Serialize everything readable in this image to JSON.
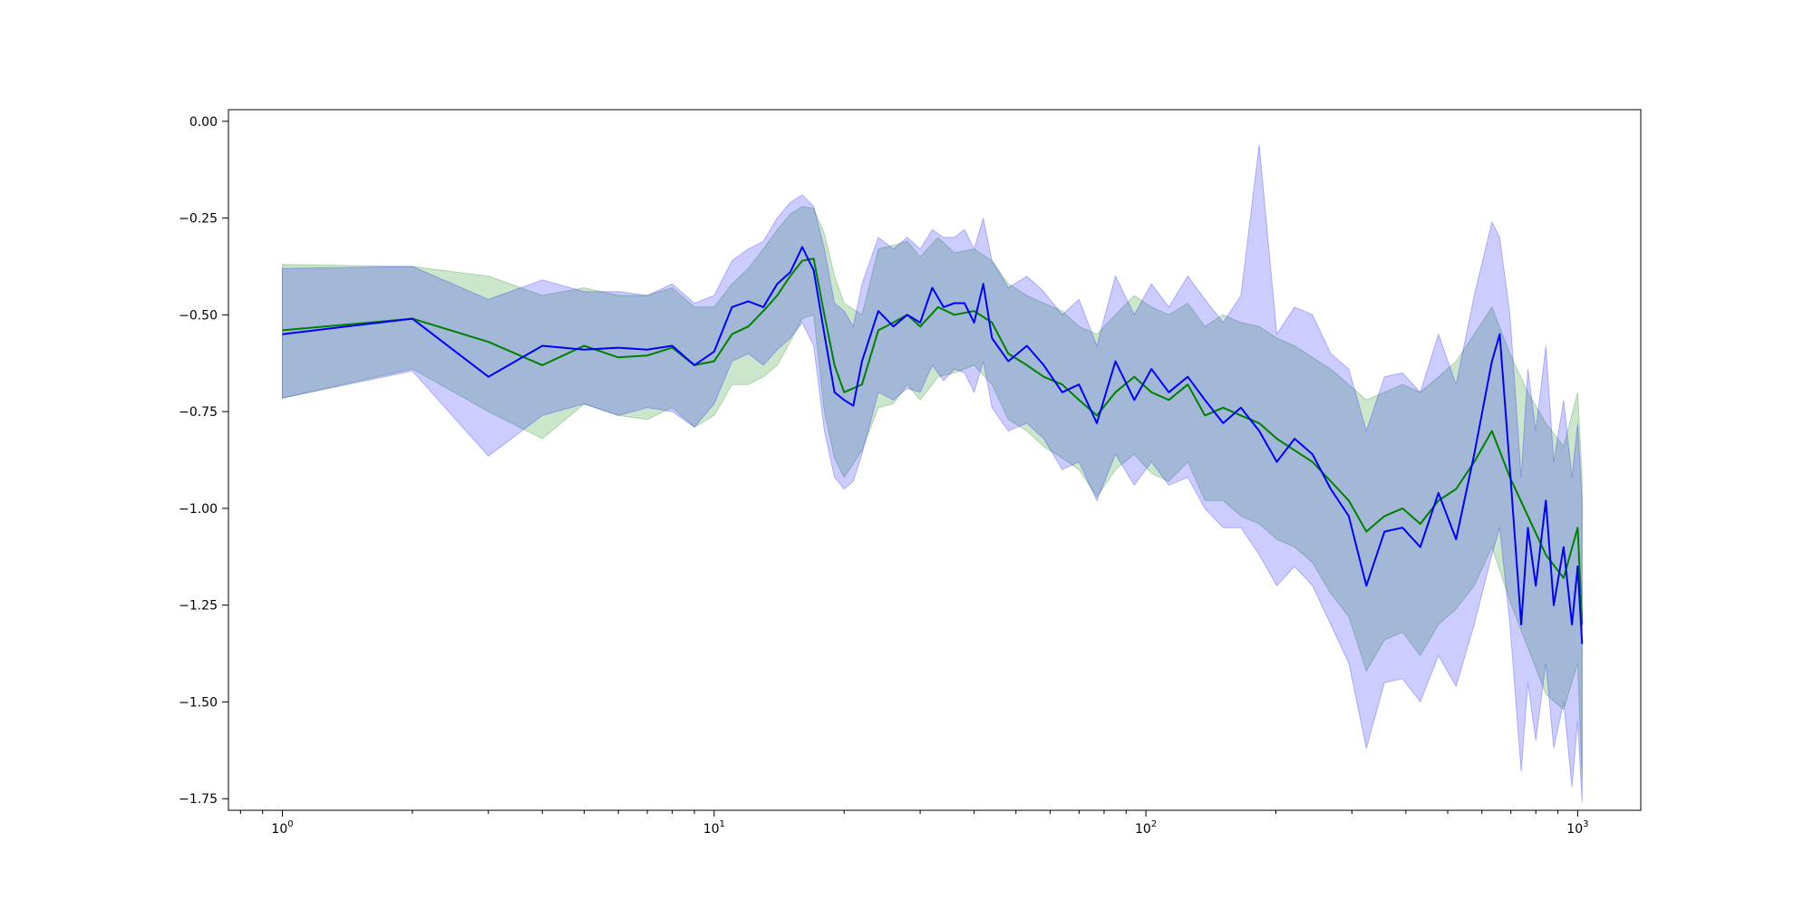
{
  "chart_data": {
    "type": "line",
    "title": "",
    "xlabel": "",
    "ylabel": "",
    "x_scale": "log",
    "xlim": [
      0.75,
      1400
    ],
    "ylim": [
      -1.78,
      0.03
    ],
    "grid": false,
    "legend": "none",
    "x_ticks": [
      {
        "value": 1,
        "base": "10",
        "exp": "0"
      },
      {
        "value": 10,
        "base": "10",
        "exp": "1"
      },
      {
        "value": 100,
        "base": "10",
        "exp": "2"
      },
      {
        "value": 1000,
        "base": "10",
        "exp": "3"
      }
    ],
    "y_ticks": [
      {
        "value": 0,
        "label": "0.00"
      },
      {
        "value": -0.25,
        "label": "−0.25"
      },
      {
        "value": -0.5,
        "label": "−0.50"
      },
      {
        "value": -0.75,
        "label": "−0.75"
      },
      {
        "value": -1.0,
        "label": "−1.00"
      },
      {
        "value": -1.25,
        "label": "−1.25"
      },
      {
        "value": -1.5,
        "label": "−1.50"
      },
      {
        "value": -1.75,
        "label": "−1.75"
      }
    ],
    "series": [
      {
        "color": "#008000",
        "band_color": "#008000",
        "x": [
          1,
          2,
          3,
          4,
          5,
          6,
          7,
          8,
          9,
          10,
          11,
          12,
          13,
          14,
          15,
          16,
          17,
          18,
          19,
          20,
          22,
          24,
          26,
          28,
          30,
          33,
          36,
          40,
          44,
          48,
          53,
          58,
          64,
          70,
          77,
          85,
          94,
          103,
          113,
          125,
          137,
          151,
          166,
          183,
          201,
          221,
          243,
          268,
          295,
          324,
          357,
          393,
          432,
          476,
          523,
          576,
          633,
          697,
          767,
          844,
          928,
          1000,
          1024
        ],
        "y": [
          -0.54,
          -0.51,
          -0.57,
          -0.63,
          -0.58,
          -0.61,
          -0.605,
          -0.585,
          -0.63,
          -0.62,
          -0.55,
          -0.53,
          -0.49,
          -0.45,
          -0.4,
          -0.36,
          -0.355,
          -0.5,
          -0.63,
          -0.7,
          -0.68,
          -0.54,
          -0.52,
          -0.5,
          -0.53,
          -0.48,
          -0.5,
          -0.49,
          -0.52,
          -0.6,
          -0.63,
          -0.66,
          -0.68,
          -0.72,
          -0.76,
          -0.7,
          -0.66,
          -0.7,
          -0.72,
          -0.68,
          -0.76,
          -0.74,
          -0.76,
          -0.78,
          -0.82,
          -0.85,
          -0.88,
          -0.93,
          -0.98,
          -1.06,
          -1.02,
          -1.0,
          -1.04,
          -0.98,
          -0.95,
          -0.88,
          -0.8,
          -0.92,
          -1.02,
          -1.12,
          -1.18,
          -1.05,
          -1.3
        ],
        "y_low": [
          -0.715,
          -0.64,
          -0.75,
          -0.82,
          -0.73,
          -0.76,
          -0.77,
          -0.74,
          -0.79,
          -0.76,
          -0.68,
          -0.68,
          -0.66,
          -0.63,
          -0.57,
          -0.51,
          -0.5,
          -0.75,
          -0.87,
          -0.92,
          -0.85,
          -0.74,
          -0.73,
          -0.68,
          -0.72,
          -0.66,
          -0.65,
          -0.63,
          -0.68,
          -0.77,
          -0.8,
          -0.84,
          -0.87,
          -0.9,
          -0.97,
          -0.9,
          -0.86,
          -0.91,
          -0.93,
          -0.88,
          -0.98,
          -0.98,
          -1.02,
          -1.04,
          -1.08,
          -1.1,
          -1.14,
          -1.22,
          -1.28,
          -1.42,
          -1.34,
          -1.32,
          -1.38,
          -1.3,
          -1.26,
          -1.2,
          -1.1,
          -1.24,
          -1.36,
          -1.48,
          -1.52,
          -1.4,
          -1.7
        ],
        "y_high": [
          -0.37,
          -0.375,
          -0.4,
          -0.45,
          -0.43,
          -0.45,
          -0.45,
          -0.43,
          -0.48,
          -0.48,
          -0.42,
          -0.38,
          -0.33,
          -0.28,
          -0.24,
          -0.22,
          -0.225,
          -0.29,
          -0.4,
          -0.47,
          -0.5,
          -0.33,
          -0.32,
          -0.31,
          -0.35,
          -0.3,
          -0.34,
          -0.33,
          -0.36,
          -0.42,
          -0.45,
          -0.47,
          -0.49,
          -0.53,
          -0.55,
          -0.5,
          -0.45,
          -0.48,
          -0.5,
          -0.47,
          -0.53,
          -0.5,
          -0.52,
          -0.53,
          -0.56,
          -0.58,
          -0.61,
          -0.64,
          -0.68,
          -0.72,
          -0.7,
          -0.68,
          -0.7,
          -0.66,
          -0.62,
          -0.55,
          -0.48,
          -0.6,
          -0.7,
          -0.78,
          -0.84,
          -0.7,
          -0.92
        ]
      },
      {
        "color": "#0000ff",
        "band_color": "#0000ff",
        "x": [
          1,
          2,
          3,
          4,
          5,
          6,
          7,
          8,
          9,
          10,
          11,
          12,
          13,
          14,
          15,
          16,
          17,
          18,
          19,
          20,
          21,
          22,
          24,
          26,
          28,
          30,
          32,
          34,
          36,
          38,
          40,
          42,
          44,
          48,
          53,
          58,
          64,
          70,
          77,
          85,
          94,
          103,
          113,
          125,
          137,
          151,
          166,
          183,
          201,
          221,
          243,
          268,
          295,
          324,
          357,
          393,
          432,
          476,
          523,
          576,
          633,
          660,
          697,
          740,
          767,
          800,
          844,
          880,
          928,
          970,
          1000,
          1024
        ],
        "y": [
          -0.55,
          -0.51,
          -0.66,
          -0.58,
          -0.59,
          -0.585,
          -0.59,
          -0.58,
          -0.63,
          -0.595,
          -0.48,
          -0.465,
          -0.48,
          -0.42,
          -0.39,
          -0.325,
          -0.385,
          -0.55,
          -0.7,
          -0.72,
          -0.735,
          -0.62,
          -0.49,
          -0.53,
          -0.5,
          -0.52,
          -0.43,
          -0.48,
          -0.47,
          -0.47,
          -0.52,
          -0.42,
          -0.56,
          -0.62,
          -0.58,
          -0.63,
          -0.7,
          -0.68,
          -0.78,
          -0.62,
          -0.72,
          -0.64,
          -0.7,
          -0.66,
          -0.72,
          -0.78,
          -0.74,
          -0.8,
          -0.88,
          -0.82,
          -0.86,
          -0.95,
          -1.02,
          -1.2,
          -1.06,
          -1.05,
          -1.1,
          -0.96,
          -1.08,
          -0.86,
          -0.62,
          -0.55,
          -0.9,
          -1.3,
          -1.05,
          -1.2,
          -0.98,
          -1.25,
          -1.1,
          -1.3,
          -1.15,
          -1.35
        ],
        "y_low": [
          -0.715,
          -0.645,
          -0.865,
          -0.76,
          -0.73,
          -0.76,
          -0.74,
          -0.75,
          -0.79,
          -0.73,
          -0.62,
          -0.6,
          -0.63,
          -0.59,
          -0.56,
          -0.52,
          -0.58,
          -0.8,
          -0.92,
          -0.95,
          -0.93,
          -0.86,
          -0.7,
          -0.72,
          -0.69,
          -0.7,
          -0.63,
          -0.67,
          -0.64,
          -0.65,
          -0.7,
          -0.62,
          -0.74,
          -0.8,
          -0.78,
          -0.82,
          -0.9,
          -0.88,
          -0.98,
          -0.86,
          -0.94,
          -0.88,
          -0.94,
          -0.92,
          -1.0,
          -1.05,
          -1.05,
          -1.12,
          -1.2,
          -1.15,
          -1.2,
          -1.3,
          -1.4,
          -1.62,
          -1.45,
          -1.44,
          -1.5,
          -1.38,
          -1.46,
          -1.3,
          -1.12,
          -1.05,
          -1.3,
          -1.68,
          -1.45,
          -1.6,
          -1.4,
          -1.62,
          -1.5,
          -1.72,
          -1.55,
          -1.76
        ],
        "y_high": [
          -0.38,
          -0.375,
          -0.46,
          -0.41,
          -0.44,
          -0.44,
          -0.45,
          -0.42,
          -0.47,
          -0.45,
          -0.36,
          -0.33,
          -0.31,
          -0.25,
          -0.21,
          -0.19,
          -0.22,
          -0.33,
          -0.47,
          -0.49,
          -0.53,
          -0.42,
          -0.3,
          -0.33,
          -0.3,
          -0.33,
          -0.28,
          -0.3,
          -0.3,
          -0.28,
          -0.33,
          -0.25,
          -0.36,
          -0.43,
          -0.4,
          -0.44,
          -0.5,
          -0.46,
          -0.58,
          -0.4,
          -0.5,
          -0.42,
          -0.48,
          -0.4,
          -0.46,
          -0.52,
          -0.45,
          -0.06,
          -0.55,
          -0.48,
          -0.5,
          -0.6,
          -0.64,
          -0.8,
          -0.66,
          -0.65,
          -0.7,
          -0.55,
          -0.68,
          -0.45,
          -0.26,
          -0.3,
          -0.5,
          -0.92,
          -0.64,
          -0.8,
          -0.58,
          -0.88,
          -0.72,
          -0.92,
          -0.78,
          -0.98
        ]
      }
    ]
  }
}
